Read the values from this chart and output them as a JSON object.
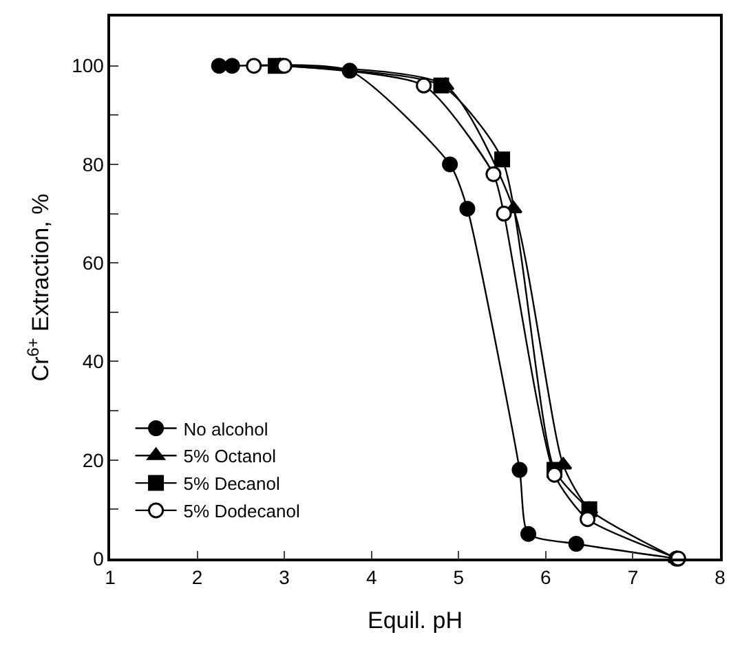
{
  "chart_data": {
    "type": "line",
    "xlabel": "Equil. pH",
    "ylabel": "Cr$^{6+}$ Extraction, %",
    "xlim": [
      1,
      8
    ],
    "xticks": [
      1,
      2,
      3,
      4,
      5,
      6,
      7,
      8
    ],
    "ylim": [
      0,
      110
    ],
    "yticks": [
      0,
      {
        "value": 10,
        "label": null
      },
      20,
      {
        "value": 30,
        "label": null
      },
      40,
      {
        "value": 50,
        "label": null
      },
      60,
      {
        "value": 70,
        "label": null
      },
      80,
      {
        "value": 90,
        "label": null
      },
      100
    ],
    "grid": false,
    "legend": "bottom left",
    "line_style": "solid",
    "series": [
      {
        "name": "No alcohol",
        "color": "#000000",
        "marker": "circle",
        "x": [
          2.25,
          2.4,
          3.75,
          4.9,
          5.1,
          5.7,
          5.8,
          6.35,
          7.5
        ],
        "values": [
          100,
          100,
          99,
          80,
          71,
          18,
          5,
          3,
          0
        ]
      },
      {
        "name": "5% Octanol",
        "color": "#000000",
        "marker": "triangle",
        "x": [
          2.95,
          4.85,
          5.63,
          6.2,
          6.5,
          7.5
        ],
        "values": [
          100,
          96,
          71,
          19,
          10,
          0
        ]
      },
      {
        "name": "5% Decanol",
        "color": "#000000",
        "marker": "square",
        "x": [
          2.9,
          4.8,
          5.5,
          6.1,
          6.5
        ],
        "values": [
          100,
          96,
          81,
          18,
          10
        ]
      },
      {
        "name": "5% Dodecanol",
        "color": "#ffffff",
        "marker": "circle",
        "x": [
          2.65,
          3.0,
          4.6,
          5.4,
          5.52,
          6.1,
          6.48,
          7.52
        ],
        "values": [
          100,
          100,
          96,
          78,
          70,
          17,
          8,
          0
        ]
      }
    ]
  }
}
